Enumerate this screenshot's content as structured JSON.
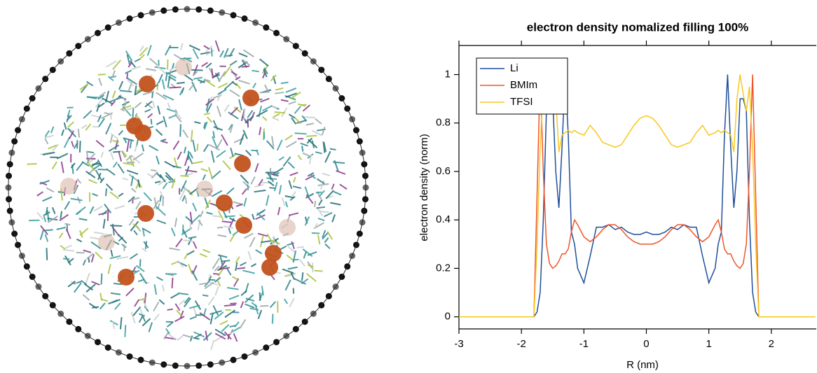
{
  "chart_data": {
    "type": "line",
    "title": "electron density nomalized filling 100%",
    "x_label": "R (nm)",
    "y_label": "electron density (norm)",
    "x": [
      -3,
      -2.5,
      -2,
      -1.9,
      -1.85,
      -1.8,
      -1.75,
      -1.7,
      -1.65,
      -1.6,
      -1.55,
      -1.5,
      -1.45,
      -1.4,
      -1.35,
      -1.3,
      -1.25,
      -1.2,
      -1.15,
      -1.1,
      -1,
      -0.9,
      -0.8,
      -0.7,
      -0.6,
      -0.5,
      -0.4,
      -0.3,
      -0.2,
      -0.1,
      0,
      0.1,
      0.2,
      0.3,
      0.4,
      0.5,
      0.6,
      0.7,
      0.8,
      0.9,
      1,
      1.1,
      1.15,
      1.2,
      1.25,
      1.3,
      1.35,
      1.4,
      1.45,
      1.5,
      1.55,
      1.6,
      1.65,
      1.7,
      1.75,
      1.8,
      1.85,
      1.9,
      2,
      2.5,
      2.7
    ],
    "series": [
      {
        "name": "Li",
        "color": "#1f4f9a",
        "values": [
          0,
          0,
          0,
          0,
          0,
          0,
          0.02,
          0.1,
          0.4,
          0.85,
          0.9,
          0.9,
          0.6,
          0.45,
          0.7,
          1,
          0.75,
          0.35,
          0.3,
          0.2,
          0.14,
          0.25,
          0.37,
          0.37,
          0.38,
          0.36,
          0.37,
          0.35,
          0.34,
          0.34,
          0.35,
          0.34,
          0.34,
          0.35,
          0.37,
          0.36,
          0.38,
          0.37,
          0.37,
          0.25,
          0.14,
          0.2,
          0.3,
          0.35,
          0.75,
          1,
          0.7,
          0.45,
          0.6,
          0.9,
          0.9,
          0.85,
          0.4,
          0.1,
          0.02,
          0,
          0,
          0,
          0,
          0,
          0
        ]
      },
      {
        "name": "BMIm",
        "color": "#f0542a",
        "values": [
          0,
          0,
          0,
          0,
          0,
          0,
          0.5,
          1,
          0.6,
          0.3,
          0.22,
          0.2,
          0.21,
          0.23,
          0.26,
          0.26,
          0.28,
          0.35,
          0.4,
          0.38,
          0.33,
          0.31,
          0.33,
          0.36,
          0.38,
          0.38,
          0.36,
          0.33,
          0.31,
          0.3,
          0.3,
          0.3,
          0.31,
          0.33,
          0.36,
          0.38,
          0.38,
          0.36,
          0.33,
          0.31,
          0.33,
          0.38,
          0.4,
          0.35,
          0.28,
          0.26,
          0.26,
          0.23,
          0.21,
          0.2,
          0.22,
          0.3,
          0.6,
          1,
          0.5,
          0,
          0,
          0,
          0,
          0,
          0
        ]
      },
      {
        "name": "TFSI",
        "color": "#f7c81e",
        "values": [
          0,
          0,
          0,
          0,
          0,
          0,
          0.3,
          0.7,
          0.95,
          0.85,
          0.92,
          1,
          0.9,
          0.68,
          0.75,
          0.76,
          0.77,
          0.76,
          0.77,
          0.76,
          0.75,
          0.79,
          0.76,
          0.72,
          0.71,
          0.7,
          0.71,
          0.75,
          0.79,
          0.82,
          0.83,
          0.82,
          0.79,
          0.75,
          0.71,
          0.7,
          0.71,
          0.72,
          0.76,
          0.79,
          0.75,
          0.76,
          0.77,
          0.76,
          0.77,
          0.76,
          0.75,
          0.68,
          0.9,
          1,
          0.92,
          0.85,
          0.95,
          0.7,
          0.3,
          0,
          0,
          0,
          0,
          0,
          0
        ]
      }
    ],
    "xlim": [
      -3,
      2.72
    ],
    "ylim": [
      -0.05,
      1.12
    ],
    "xticks": [
      -3,
      -2,
      -1,
      0,
      1,
      2
    ],
    "yticks": [
      0,
      0.2,
      0.4,
      0.6,
      0.8,
      1
    ],
    "legend": "upper left"
  }
}
